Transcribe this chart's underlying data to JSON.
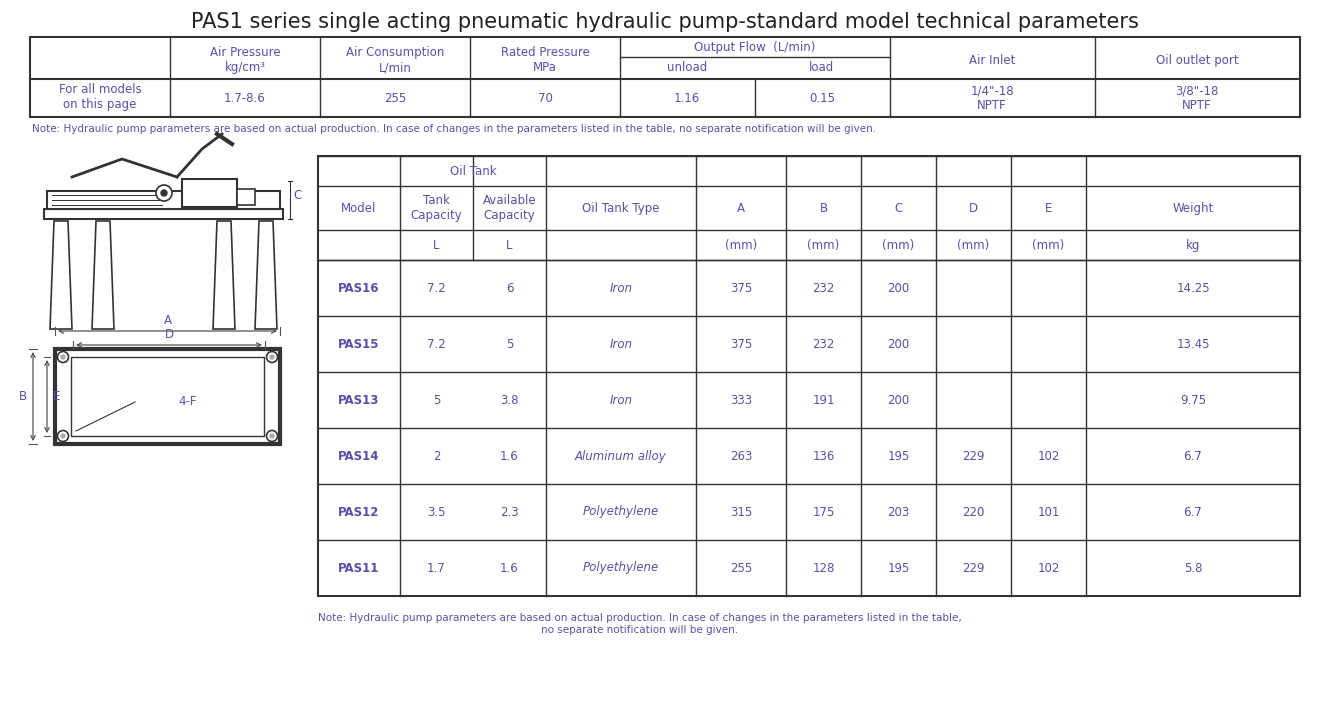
{
  "title": "PAS1 series single acting pneumatic hydraulic pump-standard model technical parameters",
  "title_fontsize": 15,
  "text_color": "#5B4FA8",
  "dark_text_color": "#222222",
  "note_color": "#5B4FA8",
  "note1": "Note: Hydraulic pump parameters are based on actual production. In case of changes in the parameters listed in the table, no separate notification will be given.",
  "note2": "Note: Hydraulic pump parameters are based on actual production. In case of changes in the parameters listed in the table,\nno separate notification will be given.",
  "top_table": {
    "col1_label": "For all models\non this page",
    "col2_header": "Air Pressure\nkg/cm³",
    "col3_header": "Air Consumption\nL/min",
    "col4_header": "Rated Pressure\nMPa",
    "col5_header": "Output Flow  (L/min)",
    "col5a_header": "unload",
    "col5b_header": "load",
    "col6_header": "Air Inlet",
    "col7_header": "Oil outlet port",
    "val2": "1.7-8.6",
    "val3": "255",
    "val4": "70",
    "val5a": "1.16",
    "val5b": "0.15",
    "val6": "1/4\"-18\nNPTF",
    "val7": "3/8\"-18\nNPTF"
  },
  "bottom_table": {
    "col_headers": [
      "Model",
      "Tank\nCapacity",
      "Available\nCapacity",
      "Oil Tank Type",
      "A",
      "B",
      "C",
      "D",
      "E",
      "Weight"
    ],
    "col_units": [
      "",
      "L",
      "L",
      "",
      "(mm)",
      "(mm)",
      "(mm)",
      "(mm)",
      "(mm)",
      "kg"
    ],
    "oil_tank_header": "Oil Tank",
    "rows": [
      [
        "PAS11",
        "1.7",
        "1.6",
        "Polyethylene",
        "255",
        "128",
        "195",
        "229",
        "102",
        "5.8"
      ],
      [
        "PAS12",
        "3.5",
        "2.3",
        "Polyethylene",
        "315",
        "175",
        "203",
        "220",
        "101",
        "6.7"
      ],
      [
        "PAS14",
        "2",
        "1.6",
        "Aluminum alloy",
        "263",
        "136",
        "195",
        "229",
        "102",
        "6.7"
      ],
      [
        "PAS13",
        "5",
        "3.8",
        "Iron",
        "333",
        "191",
        "200",
        "",
        "",
        "9.75"
      ],
      [
        "PAS15",
        "7.2",
        "5",
        "Iron",
        "375",
        "232",
        "200",
        "",
        "",
        "13.45"
      ],
      [
        "PAS16",
        "7.2",
        "6",
        "Iron",
        "375",
        "232",
        "200",
        "",
        "",
        "14.25"
      ]
    ]
  },
  "background_color": "#ffffff",
  "border_color": "#333333",
  "line_color": "#555555"
}
